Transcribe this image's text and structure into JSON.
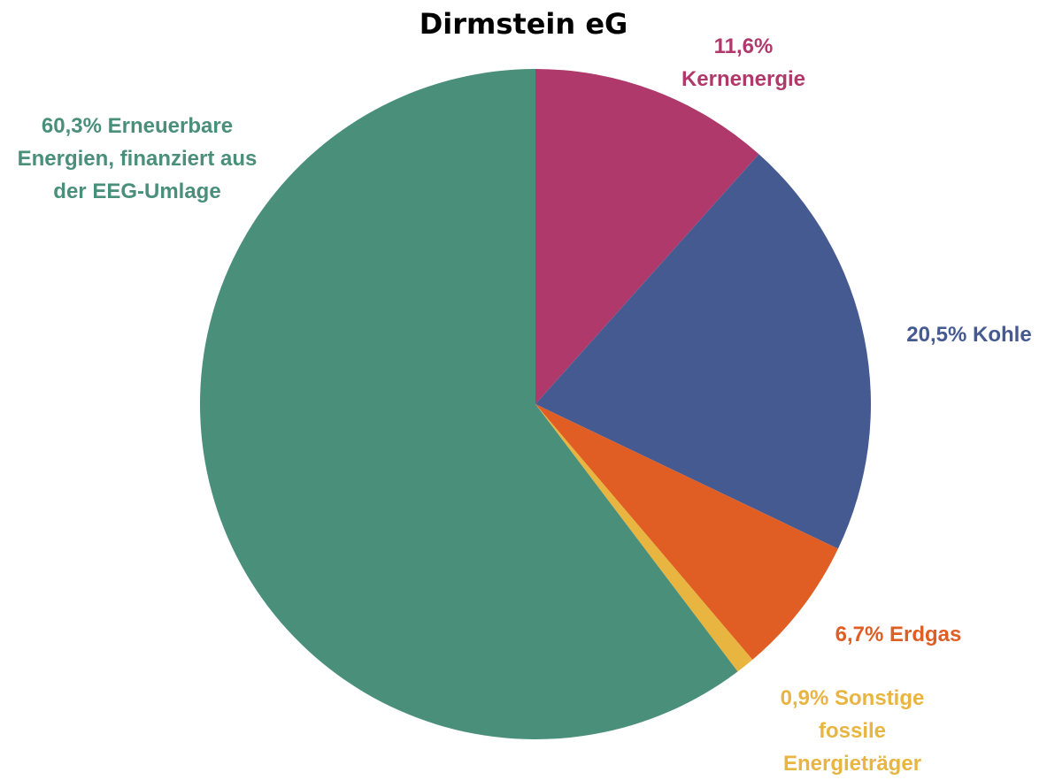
{
  "chart_data": {
    "type": "pie",
    "title": "Dirmstein eG",
    "categories": [
      "Kernenergie",
      "Kohle",
      "Erdgas",
      "Sonstige fossile Energieträger",
      "Erneuerbare Energien, finanziert aus der EEG-Umlage"
    ],
    "values": [
      11.6,
      20.5,
      6.7,
      0.9,
      60.3
    ],
    "value_labels": [
      "11,6%",
      "20,5%",
      "6,7%",
      "0,9%",
      "60,3%"
    ],
    "colors": [
      "#b0396b",
      "#465a92",
      "#e05e23",
      "#e8b540",
      "#4a8f7a"
    ]
  }
}
